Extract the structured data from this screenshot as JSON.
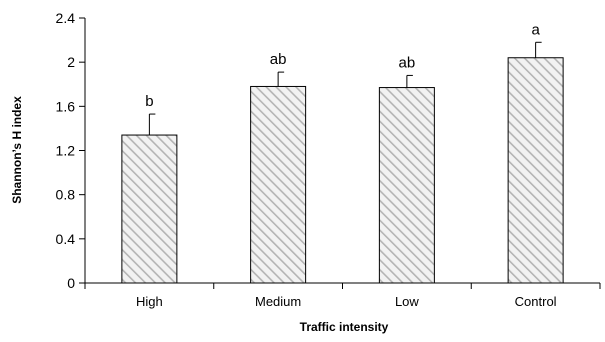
{
  "chart_data": {
    "type": "bar",
    "title": "",
    "xlabel": "Traffic intensity",
    "ylabel": "Shannon’s H  index",
    "categories": [
      "High",
      "Medium",
      "Low",
      "Control"
    ],
    "series": [
      {
        "values": [
          1.34,
          1.78,
          1.77,
          2.04
        ],
        "error": [
          0.19,
          0.13,
          0.11,
          0.14
        ],
        "significance": [
          "b",
          "ab",
          "ab",
          "a"
        ]
      }
    ],
    "ylim": [
      0,
      2.4
    ],
    "yticks": [
      "0",
      "0.4",
      "0.8",
      "1.2",
      "1.6",
      "2",
      "2.4"
    ],
    "grid": false,
    "legend": "none",
    "colors": {
      "bar_fill": "#f2f2f2",
      "bar_hatch": "#b4b4b4",
      "stroke": "#000000"
    }
  }
}
